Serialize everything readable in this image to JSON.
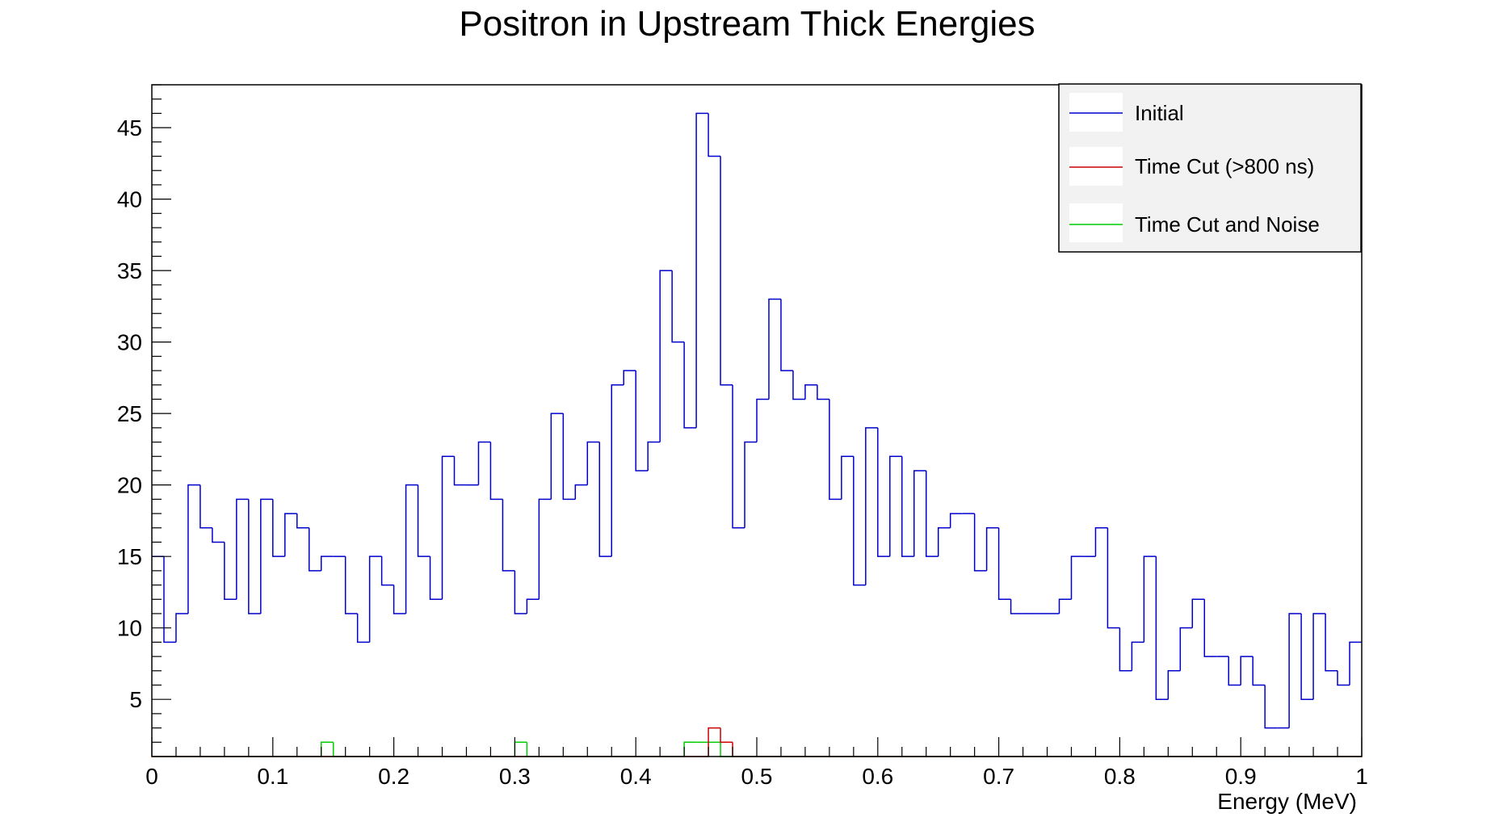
{
  "chart_data": {
    "type": "histogram",
    "title": "Positron in Upstream Thick Energies",
    "xlabel": "Energy (MeV)",
    "ylabel": "",
    "xlim": [
      0,
      1
    ],
    "ylim": [
      1,
      48
    ],
    "bin_width": 0.01,
    "x_ticks": [
      "0",
      "0.1",
      "0.2",
      "0.3",
      "0.4",
      "0.5",
      "0.6",
      "0.7",
      "0.8",
      "0.9",
      "1"
    ],
    "y_ticks": [
      "5",
      "10",
      "15",
      "20",
      "25",
      "30",
      "35",
      "40",
      "45"
    ],
    "grid": false,
    "legend_position": "top-right",
    "series": [
      {
        "name": "Initial",
        "color": "#0000cc",
        "values": [
          15,
          9,
          11,
          20,
          17,
          16,
          12,
          19,
          11,
          19,
          15,
          18,
          17,
          14,
          15,
          15,
          11,
          9,
          15,
          13,
          11,
          20,
          15,
          12,
          22,
          20,
          20,
          23,
          19,
          14,
          11,
          12,
          19,
          25,
          19,
          20,
          23,
          15,
          27,
          28,
          21,
          23,
          35,
          30,
          24,
          46,
          43,
          27,
          17,
          23,
          26,
          33,
          28,
          26,
          27,
          26,
          19,
          22,
          13,
          24,
          15,
          22,
          15,
          21,
          15,
          17,
          18,
          18,
          14,
          17,
          12,
          11,
          11,
          11,
          11,
          12,
          15,
          15,
          17,
          10,
          7,
          9,
          15,
          5,
          7,
          10,
          12,
          8,
          8,
          6,
          8,
          6,
          3,
          3,
          11,
          5,
          11,
          7,
          6,
          9
        ]
      },
      {
        "name": "Time Cut (>800 ns)",
        "color": "#cc0000",
        "values": [
          0,
          0,
          0,
          0,
          0,
          0,
          0,
          0,
          0,
          0,
          0,
          0,
          0,
          0,
          0,
          0,
          0,
          0,
          0,
          0,
          0,
          0,
          0,
          0,
          0,
          0,
          0,
          0,
          0,
          0,
          0,
          0,
          0,
          0,
          0,
          0,
          0,
          0,
          0,
          0,
          0,
          0,
          0,
          0,
          0,
          0,
          3,
          2,
          0,
          0,
          0,
          0,
          0,
          0,
          0,
          0,
          0,
          0,
          0,
          0,
          0,
          0,
          0,
          0,
          0,
          0,
          0,
          0,
          0,
          0,
          0,
          0,
          0,
          0,
          0,
          0,
          0,
          0,
          0,
          0,
          0,
          0,
          0,
          0,
          0,
          0,
          0,
          0,
          0,
          0,
          0,
          0,
          0,
          0,
          0,
          0,
          0,
          0,
          0,
          0
        ]
      },
      {
        "name": "Time Cut and Noise",
        "color": "#00cc00",
        "values": [
          0,
          0,
          0,
          0,
          0,
          0,
          0,
          0,
          0,
          0,
          0,
          0,
          0,
          0,
          2,
          0,
          0,
          0,
          0,
          0,
          0,
          0,
          0,
          0,
          0,
          0,
          0,
          0,
          0,
          0,
          2,
          0,
          0,
          0,
          0,
          0,
          0,
          0,
          0,
          0,
          0,
          0,
          0,
          0,
          2,
          2,
          2,
          0,
          0,
          0,
          0,
          0,
          0,
          0,
          0,
          0,
          0,
          0,
          0,
          0,
          0,
          0,
          0,
          0,
          0,
          0,
          0,
          0,
          0,
          0,
          0,
          0,
          0,
          0,
          0,
          0,
          0,
          0,
          0,
          0,
          0,
          0,
          0,
          0,
          0,
          0,
          0,
          0,
          0,
          0,
          0,
          0,
          0,
          0,
          0,
          0,
          0,
          0,
          0,
          0
        ]
      }
    ]
  }
}
